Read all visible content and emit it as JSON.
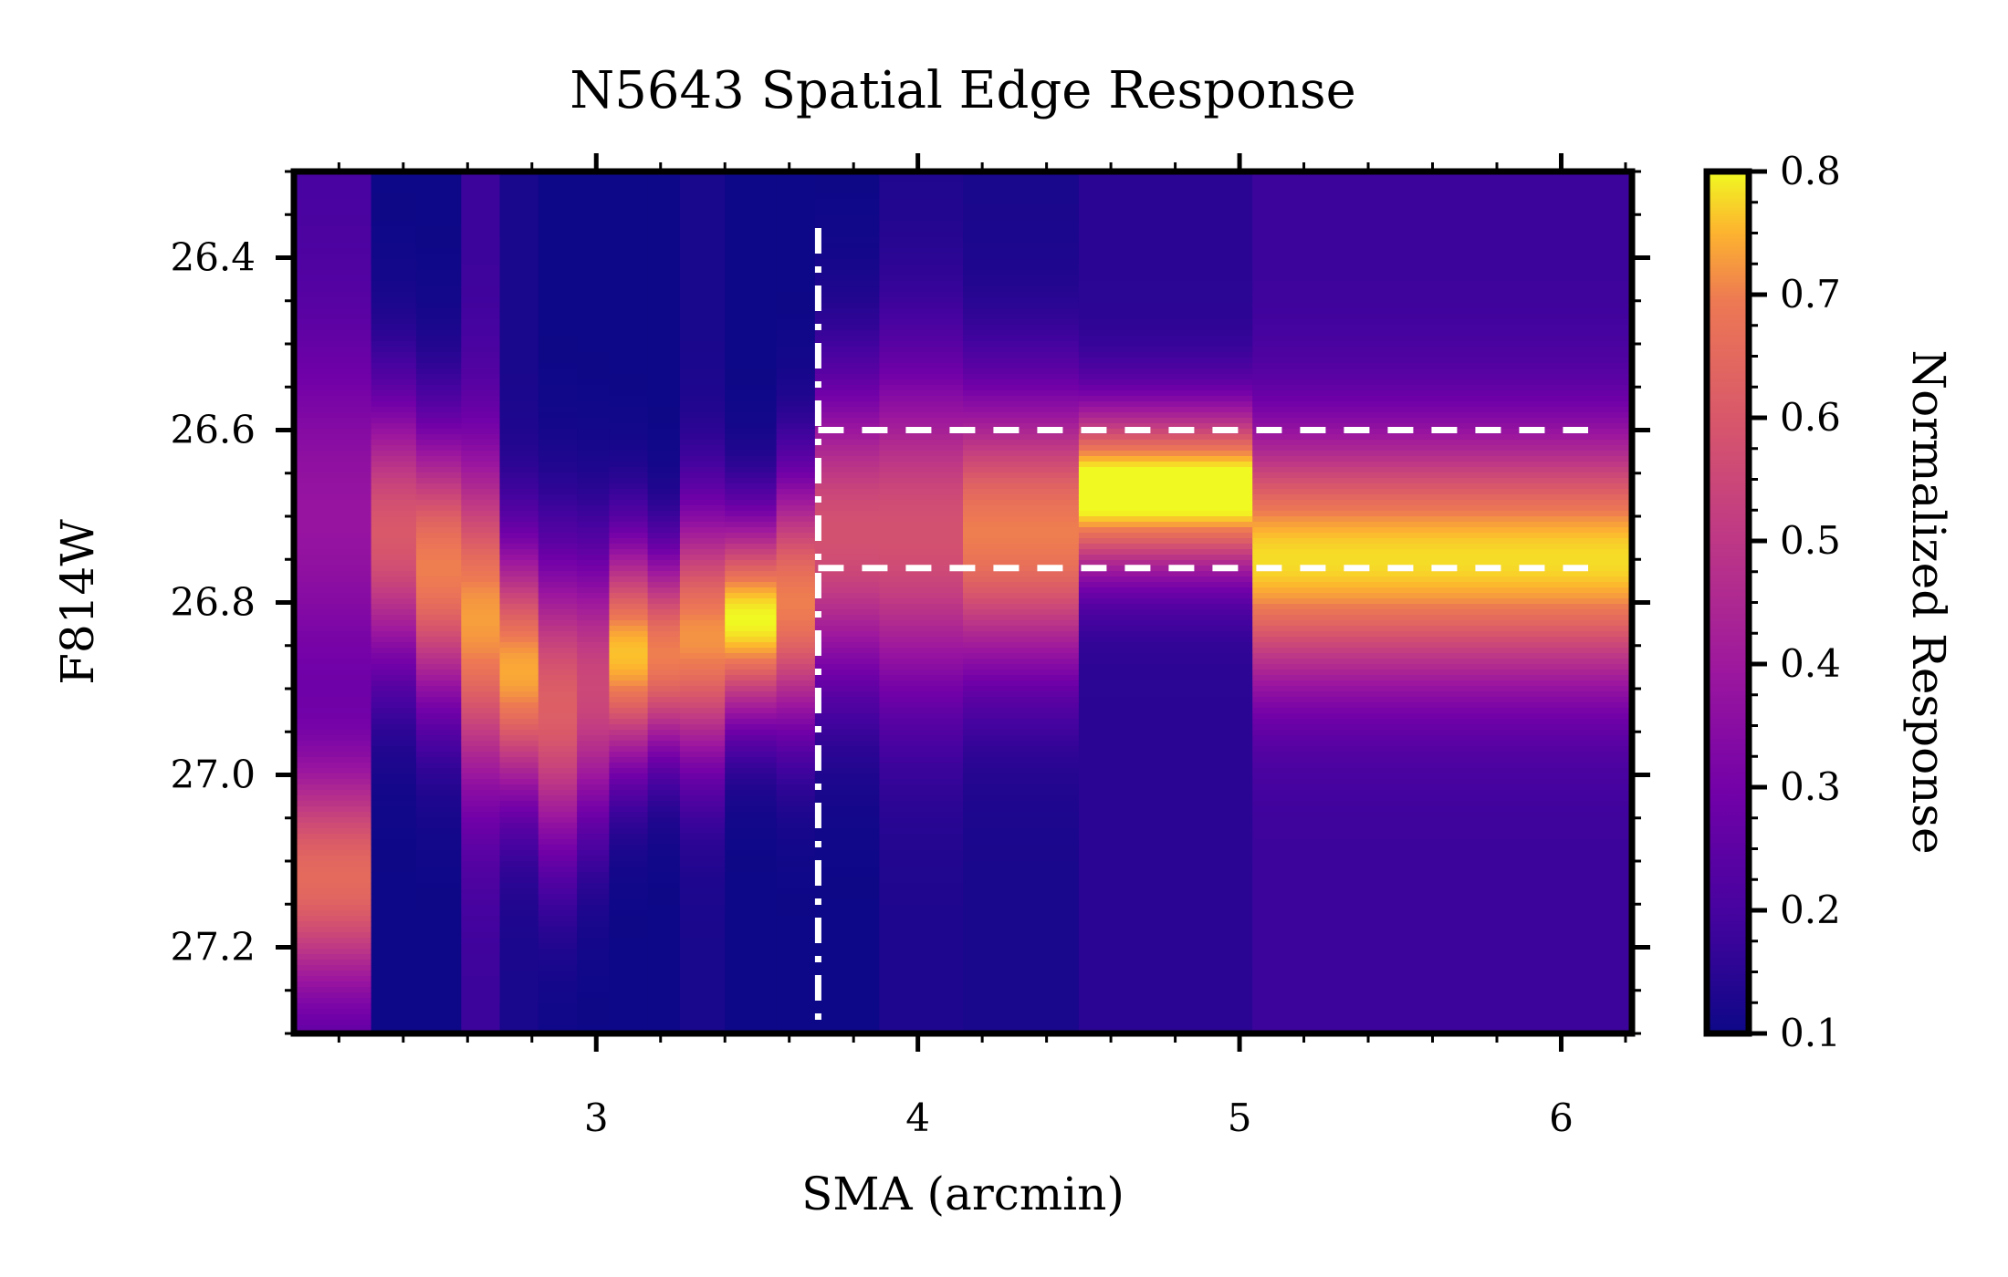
{
  "chart_data": {
    "type": "heatmap",
    "title": "N5643 Spatial Edge Response",
    "xlabel": "SMA (arcmin)",
    "ylabel": "F814W",
    "xlim": [
      2.06,
      6.22
    ],
    "ylim": [
      27.3,
      26.3
    ],
    "y_inverted": true,
    "x_ticks": [
      3,
      4,
      5,
      6
    ],
    "x_tick_labels": [
      "3",
      "4",
      "5",
      "6"
    ],
    "y_ticks": [
      26.4,
      26.6,
      26.8,
      27.0,
      27.2
    ],
    "y_tick_labels": [
      "26.4",
      "26.6",
      "26.8",
      "27.0",
      "27.2"
    ],
    "colormap": "plasma",
    "colorbar": {
      "label": "Normalized Response",
      "range": [
        0.1,
        0.8
      ],
      "ticks": [
        0.1,
        0.2,
        0.3,
        0.4,
        0.5,
        0.6,
        0.7,
        0.8
      ],
      "tick_labels": [
        "0.1",
        "0.2",
        "0.3",
        "0.4",
        "0.5",
        "0.6",
        "0.7",
        "0.8"
      ]
    },
    "columns": [
      {
        "x0": 2.06,
        "x1": 2.3,
        "blobs": [
          {
            "mu": 26.7,
            "sigma": 0.14,
            "amp": 0.18
          },
          {
            "mu": 27.12,
            "sigma": 0.09,
            "amp": 0.45
          }
        ],
        "base": 0.2
      },
      {
        "x0": 2.3,
        "x1": 2.44,
        "blobs": [
          {
            "mu": 26.72,
            "sigma": 0.11,
            "amp": 0.5
          }
        ],
        "base": 0.1
      },
      {
        "x0": 2.44,
        "x1": 2.58,
        "blobs": [
          {
            "mu": 26.76,
            "sigma": 0.11,
            "amp": 0.6
          }
        ],
        "base": 0.1
      },
      {
        "x0": 2.58,
        "x1": 2.7,
        "blobs": [
          {
            "mu": 26.82,
            "sigma": 0.13,
            "amp": 0.55
          }
        ],
        "base": 0.18
      },
      {
        "x0": 2.7,
        "x1": 2.82,
        "blobs": [
          {
            "mu": 26.88,
            "sigma": 0.1,
            "amp": 0.62
          }
        ],
        "base": 0.12
      },
      {
        "x0": 2.82,
        "x1": 2.94,
        "blobs": [
          {
            "mu": 26.92,
            "sigma": 0.12,
            "amp": 0.52
          }
        ],
        "base": 0.1
      },
      {
        "x0": 2.94,
        "x1": 3.04,
        "blobs": [
          {
            "mu": 26.9,
            "sigma": 0.11,
            "amp": 0.45
          }
        ],
        "base": 0.1
      },
      {
        "x0": 3.04,
        "x1": 3.16,
        "blobs": [
          {
            "mu": 26.86,
            "sigma": 0.09,
            "amp": 0.66
          }
        ],
        "base": 0.1
      },
      {
        "x0": 3.16,
        "x1": 3.26,
        "blobs": [
          {
            "mu": 26.86,
            "sigma": 0.08,
            "amp": 0.6
          }
        ],
        "base": 0.1
      },
      {
        "x0": 3.26,
        "x1": 3.4,
        "blobs": [
          {
            "mu": 26.84,
            "sigma": 0.1,
            "amp": 0.6
          }
        ],
        "base": 0.12
      },
      {
        "x0": 3.4,
        "x1": 3.56,
        "blobs": [
          {
            "mu": 26.82,
            "sigma": 0.08,
            "amp": 0.7
          }
        ],
        "base": 0.1
      },
      {
        "x0": 3.56,
        "x1": 3.68,
        "blobs": [
          {
            "mu": 26.8,
            "sigma": 0.1,
            "amp": 0.6
          }
        ],
        "base": 0.1
      },
      {
        "x0": 3.68,
        "x1": 3.88,
        "blobs": [
          {
            "mu": 26.72,
            "sigma": 0.12,
            "amp": 0.48
          }
        ],
        "base": 0.1
      },
      {
        "x0": 3.88,
        "x1": 4.14,
        "blobs": [
          {
            "mu": 26.72,
            "sigma": 0.13,
            "amp": 0.45
          }
        ],
        "base": 0.13
      },
      {
        "x0": 4.14,
        "x1": 4.5,
        "blobs": [
          {
            "mu": 26.72,
            "sigma": 0.11,
            "amp": 0.58
          }
        ],
        "base": 0.12
      },
      {
        "x0": 4.5,
        "x1": 5.04,
        "blobs": [
          {
            "mu": 26.67,
            "sigma": 0.065,
            "amp": 0.7
          }
        ],
        "base": 0.15
      },
      {
        "x0": 5.04,
        "x1": 6.22,
        "blobs": [
          {
            "mu": 26.75,
            "sigma": 0.1,
            "amp": 0.6
          }
        ],
        "base": 0.18
      }
    ],
    "reference_lines": [
      {
        "orientation": "vertical",
        "x": 3.69,
        "style": "dash-dot",
        "color": "#ffffff"
      },
      {
        "orientation": "horizontal",
        "y": 26.6,
        "x_from": 3.69,
        "style": "dashed",
        "color": "#ffffff"
      },
      {
        "orientation": "horizontal",
        "y": 26.76,
        "x_from": 3.69,
        "style": "dashed",
        "color": "#ffffff"
      }
    ]
  }
}
